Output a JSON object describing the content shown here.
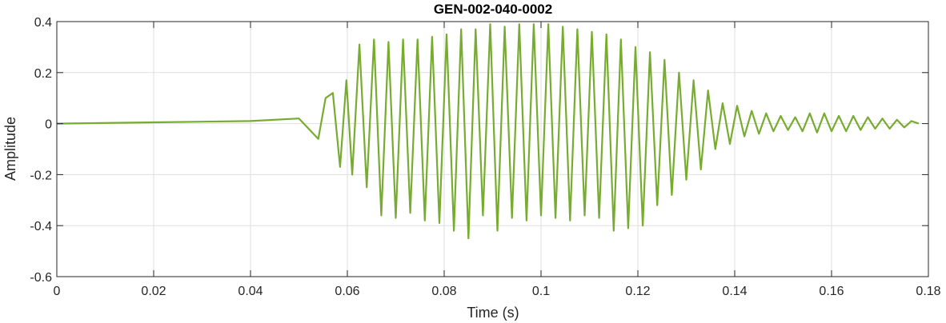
{
  "chart_data": {
    "type": "line",
    "title": "GEN-002-040-0002",
    "xlabel": "Time (s)",
    "ylabel": "Amplitude",
    "xlim": [
      0,
      0.18
    ],
    "ylim": [
      -0.6,
      0.4
    ],
    "x_ticks": [
      0,
      0.02,
      0.04,
      0.06,
      0.08,
      0.1,
      0.12,
      0.14,
      0.16,
      0.18
    ],
    "x_tick_labels": [
      "0",
      "0.02",
      "0.04",
      "0.06",
      "0.08",
      "0.1",
      "0.12",
      "0.14",
      "0.16",
      "0.18"
    ],
    "y_ticks": [
      -0.6,
      -0.4,
      -0.2,
      0,
      0.2,
      0.4
    ],
    "y_tick_labels": [
      "-0.6",
      "-0.4",
      "-0.2",
      "0",
      "0.2",
      "0.4"
    ],
    "grid": true,
    "legend": "none",
    "line_color": "#77ac30",
    "series": [
      {
        "x": [
          0,
          0.02,
          0.04,
          0.05,
          0.054,
          0.0555,
          0.057,
          0.0585,
          0.0598,
          0.061,
          0.0625,
          0.064,
          0.0655,
          0.067,
          0.0685,
          0.07,
          0.0715,
          0.073,
          0.0745,
          0.076,
          0.0775,
          0.079,
          0.0805,
          0.082,
          0.0835,
          0.085,
          0.0865,
          0.088,
          0.0895,
          0.091,
          0.0925,
          0.094,
          0.0955,
          0.097,
          0.0985,
          0.1,
          0.1015,
          0.103,
          0.1045,
          0.106,
          0.1075,
          0.109,
          0.1105,
          0.112,
          0.1135,
          0.115,
          0.1165,
          0.118,
          0.1195,
          0.121,
          0.1225,
          0.124,
          0.1255,
          0.127,
          0.1285,
          0.13,
          0.1315,
          0.133,
          0.1345,
          0.136,
          0.1375,
          0.139,
          0.1405,
          0.142,
          0.1435,
          0.145,
          0.1465,
          0.148,
          0.1495,
          0.151,
          0.1525,
          0.154,
          0.1555,
          0.157,
          0.1585,
          0.16,
          0.1615,
          0.163,
          0.1645,
          0.166,
          0.1675,
          0.169,
          0.1705,
          0.172,
          0.1735,
          0.175,
          0.1765,
          0.178
        ],
        "y": [
          0,
          0.005,
          0.01,
          0.02,
          -0.06,
          0.1,
          0.12,
          -0.17,
          0.17,
          -0.2,
          0.31,
          -0.25,
          0.33,
          -0.36,
          0.32,
          -0.37,
          0.33,
          -0.35,
          0.33,
          -0.38,
          0.34,
          -0.39,
          0.35,
          -0.42,
          0.37,
          -0.45,
          0.37,
          -0.36,
          0.39,
          -0.42,
          0.38,
          -0.37,
          0.39,
          -0.38,
          0.39,
          -0.36,
          0.39,
          -0.37,
          0.38,
          -0.38,
          0.37,
          -0.36,
          0.36,
          -0.37,
          0.35,
          -0.42,
          0.33,
          -0.41,
          0.3,
          -0.4,
          0.28,
          -0.32,
          0.25,
          -0.28,
          0.2,
          -0.22,
          0.17,
          -0.18,
          0.13,
          -0.1,
          0.08,
          -0.08,
          0.07,
          -0.05,
          0.05,
          -0.04,
          0.04,
          -0.03,
          0.03,
          -0.025,
          0.025,
          -0.03,
          0.04,
          -0.035,
          0.04,
          -0.03,
          0.03,
          -0.03,
          0.03,
          -0.025,
          0.025,
          -0.02,
          0.02,
          -0.02,
          0.015,
          -0.015,
          0.01,
          0.0
        ]
      }
    ]
  }
}
